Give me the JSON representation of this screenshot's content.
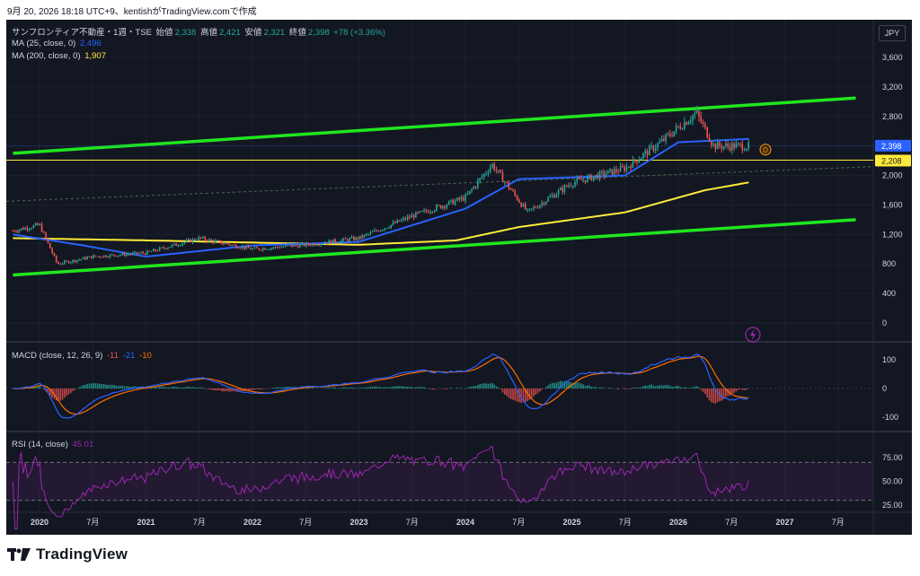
{
  "caption": "9月 20, 2026 18:18 UTC+9、kentishがTradingView.comで作成",
  "header": {
    "symbol": "サンフロンティア不動産・1週・TSE",
    "open_label": "始値",
    "open": "2,338",
    "high_label": "高値",
    "high": "2,421",
    "low_label": "安値",
    "low": "2,321",
    "close_label": "終値",
    "close": "2,398",
    "change": "+78 (+3.36%)"
  },
  "indicators": {
    "ma25": {
      "label": "MA (25, close, 0)",
      "value": "2,496",
      "color": "#2962ff"
    },
    "ma200": {
      "label": "MA (200, close, 0)",
      "value": "1,907",
      "color": "#ffeb3b"
    },
    "macd": {
      "label": "MACD (close, 12, 26, 9)",
      "v1": "-11",
      "v2": "-21",
      "v3": "-10"
    },
    "rsi": {
      "label": "RSI (14, close)",
      "value": "45.01"
    }
  },
  "currency": "JPY",
  "price_tags": {
    "last": "2,398",
    "level": "2,208"
  },
  "marker_d": "D",
  "colors": {
    "up": "#26a69a",
    "down": "#ef5350",
    "channel": "#1fe61f",
    "ma25": "#2962ff",
    "ma200": "#ffeb3b",
    "macd": "#2962ff",
    "signal": "#ff6d00",
    "rsi": "#9c27b0",
    "level": "#ffeb3b",
    "last": "#2962ff"
  },
  "footer": {
    "brand": "TradingView"
  },
  "chart_data": {
    "type": "candlestick",
    "title": "サンフロンティア不動産・1週・TSE",
    "price_axis": {
      "ticks": [
        "3,600",
        "3,200",
        "2,800",
        "2,400",
        "2,000",
        "1,600",
        "1,200",
        "800",
        "400",
        "0"
      ],
      "ylim": [
        -100,
        3850
      ]
    },
    "time_axis": {
      "ticks": [
        "2020",
        "7月",
        "2021",
        "7月",
        "2022",
        "7月",
        "2023",
        "7月",
        "2024",
        "7月",
        "2025",
        "7月",
        "2026",
        "7月",
        "2027",
        "7月"
      ]
    },
    "close_series": [
      {
        "date": "2019-10",
        "value": 1250
      },
      {
        "date": "2020-01",
        "value": 1330
      },
      {
        "date": "2020-03",
        "value": 800
      },
      {
        "date": "2020-07",
        "value": 900
      },
      {
        "date": "2021-01",
        "value": 950
      },
      {
        "date": "2021-07",
        "value": 1150
      },
      {
        "date": "2022-01",
        "value": 1000
      },
      {
        "date": "2022-07",
        "value": 1060
      },
      {
        "date": "2023-01",
        "value": 1150
      },
      {
        "date": "2023-07",
        "value": 1450
      },
      {
        "date": "2024-01",
        "value": 1700
      },
      {
        "date": "2024-04",
        "value": 2150
      },
      {
        "date": "2024-08",
        "value": 1500
      },
      {
        "date": "2025-01",
        "value": 1900
      },
      {
        "date": "2025-07",
        "value": 2100
      },
      {
        "date": "2025-11",
        "value": 2450
      },
      {
        "date": "2026-03",
        "value": 2850
      },
      {
        "date": "2026-05",
        "value": 2400
      },
      {
        "date": "2026-09",
        "value": 2398
      }
    ],
    "ma25": [
      {
        "date": "2019-10",
        "value": 1200
      },
      {
        "date": "2020-06",
        "value": 1050
      },
      {
        "date": "2021-01",
        "value": 900
      },
      {
        "date": "2022-01",
        "value": 1050
      },
      {
        "date": "2023-01",
        "value": 1100
      },
      {
        "date": "2024-01",
        "value": 1550
      },
      {
        "date": "2024-07",
        "value": 1950
      },
      {
        "date": "2025-07",
        "value": 2000
      },
      {
        "date": "2026-01",
        "value": 2450
      },
      {
        "date": "2026-09",
        "value": 2496
      }
    ],
    "ma200": [
      {
        "date": "2019-10",
        "value": 1150
      },
      {
        "date": "2021-01",
        "value": 1120
      },
      {
        "date": "2023-01",
        "value": 1060
      },
      {
        "date": "2023-12",
        "value": 1120
      },
      {
        "date": "2024-07",
        "value": 1300
      },
      {
        "date": "2025-07",
        "value": 1500
      },
      {
        "date": "2026-04",
        "value": 1800
      },
      {
        "date": "2026-09",
        "value": 1907
      }
    ],
    "channel_upper": [
      {
        "date": "2019-10",
        "value": 2300
      },
      {
        "date": "2027-09",
        "value": 3050
      }
    ],
    "channel_lower": [
      {
        "date": "2019-10",
        "value": 650
      },
      {
        "date": "2027-09",
        "value": 1400
      }
    ],
    "horizontal_level": 2208,
    "macd_axis": {
      "ticks": [
        "100",
        "0",
        "-100"
      ]
    },
    "rsi_axis": {
      "ticks": [
        "75.00",
        "50.00",
        "25.00"
      ],
      "bands": [
        70,
        30
      ]
    }
  }
}
